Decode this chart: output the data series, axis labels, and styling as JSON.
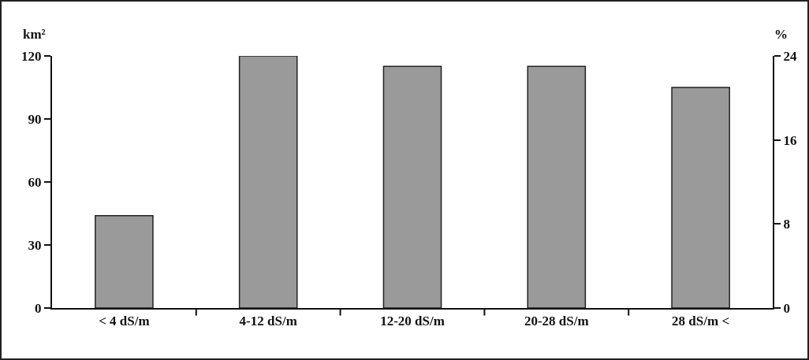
{
  "chart_data": {
    "type": "bar",
    "ylabel": "km²",
    "y2label": "%",
    "categories": [
      "< 4 dS/m",
      "4-12 dS/m",
      "12-20 dS/m",
      "20-28 dS/m",
      "28 dS/m <"
    ],
    "values": [
      44,
      120,
      115,
      115,
      105
    ],
    "color": "#9a9a9a",
    "ylim": [
      0,
      120
    ],
    "yticks": [
      0,
      30,
      60,
      90,
      120
    ],
    "y2lim": [
      0,
      24
    ],
    "y2ticks": [
      0,
      8,
      16,
      24
    ],
    "grid": false,
    "legend": false
  }
}
